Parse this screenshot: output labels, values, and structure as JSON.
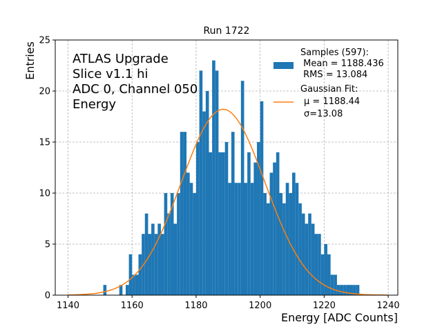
{
  "chart_data": {
    "type": "bar",
    "title": "Run 1722",
    "xlabel": "Energy [ADC Counts]",
    "ylabel": "Entries",
    "xlim": [
      1136,
      1243
    ],
    "ylim": [
      0,
      25
    ],
    "grid": true,
    "bin_width": 1,
    "x_ticks": [
      1140,
      1160,
      1180,
      1200,
      1220,
      1240
    ],
    "y_ticks": [
      0,
      5,
      10,
      15,
      20,
      25
    ],
    "annotation_lines": [
      "ATLAS Upgrade",
      "Slice v1.1 hi",
      "ADC 0, Channel 050",
      "Energy"
    ],
    "legend": {
      "position": "top-right",
      "samples_lines": [
        "Samples (597):",
        " Mean = 1188.436",
        " RMS = 13.084"
      ],
      "fit_lines": [
        "Gaussian Fit:",
        "μ = 1188.44",
        "σ=13.08"
      ]
    },
    "colors": {
      "bars": "#1f77b4",
      "fit": "#ff7f0e",
      "grid": "#b0b0b0"
    },
    "fit": {
      "mu": 1188.44,
      "sigma": 13.08,
      "entries": 597
    },
    "bins": [
      [
        1151,
        1
      ],
      [
        1156,
        1
      ],
      [
        1158,
        1
      ],
      [
        1159,
        4
      ],
      [
        1160,
        2
      ],
      [
        1161,
        2
      ],
      [
        1162,
        4
      ],
      [
        1163,
        6
      ],
      [
        1164,
        8
      ],
      [
        1165,
        6
      ],
      [
        1166,
        7
      ],
      [
        1167,
        6
      ],
      [
        1168,
        7
      ],
      [
        1169,
        6
      ],
      [
        1170,
        10
      ],
      [
        1171,
        8
      ],
      [
        1172,
        10
      ],
      [
        1173,
        7
      ],
      [
        1174,
        10
      ],
      [
        1175,
        16
      ],
      [
        1176,
        16
      ],
      [
        1177,
        12
      ],
      [
        1178,
        11
      ],
      [
        1179,
        10
      ],
      [
        1180,
        15
      ],
      [
        1181,
        22
      ],
      [
        1182,
        18
      ],
      [
        1183,
        20
      ],
      [
        1184,
        14
      ],
      [
        1185,
        23
      ],
      [
        1186,
        22
      ],
      [
        1187,
        14
      ],
      [
        1188,
        14
      ],
      [
        1189,
        15
      ],
      [
        1190,
        11
      ],
      [
        1191,
        16
      ],
      [
        1192,
        11
      ],
      [
        1193,
        11
      ],
      [
        1194,
        21
      ],
      [
        1195,
        11
      ],
      [
        1196,
        14
      ],
      [
        1197,
        11
      ],
      [
        1198,
        13
      ],
      [
        1199,
        15
      ],
      [
        1200,
        19
      ],
      [
        1201,
        10
      ],
      [
        1202,
        9
      ],
      [
        1203,
        12
      ],
      [
        1204,
        13
      ],
      [
        1205,
        14
      ],
      [
        1206,
        10
      ],
      [
        1207,
        9
      ],
      [
        1208,
        11
      ],
      [
        1209,
        10
      ],
      [
        1210,
        12
      ],
      [
        1211,
        11
      ],
      [
        1212,
        9
      ],
      [
        1213,
        8
      ],
      [
        1214,
        7
      ],
      [
        1215,
        8
      ],
      [
        1216,
        7
      ],
      [
        1217,
        6
      ],
      [
        1218,
        6
      ],
      [
        1219,
        4
      ],
      [
        1220,
        5
      ],
      [
        1221,
        4
      ],
      [
        1222,
        2
      ],
      [
        1223,
        2
      ],
      [
        1224,
        1
      ],
      [
        1225,
        1
      ],
      [
        1226,
        1
      ],
      [
        1227,
        1
      ],
      [
        1228,
        1
      ],
      [
        1229,
        1
      ],
      [
        1230,
        1
      ]
    ]
  }
}
